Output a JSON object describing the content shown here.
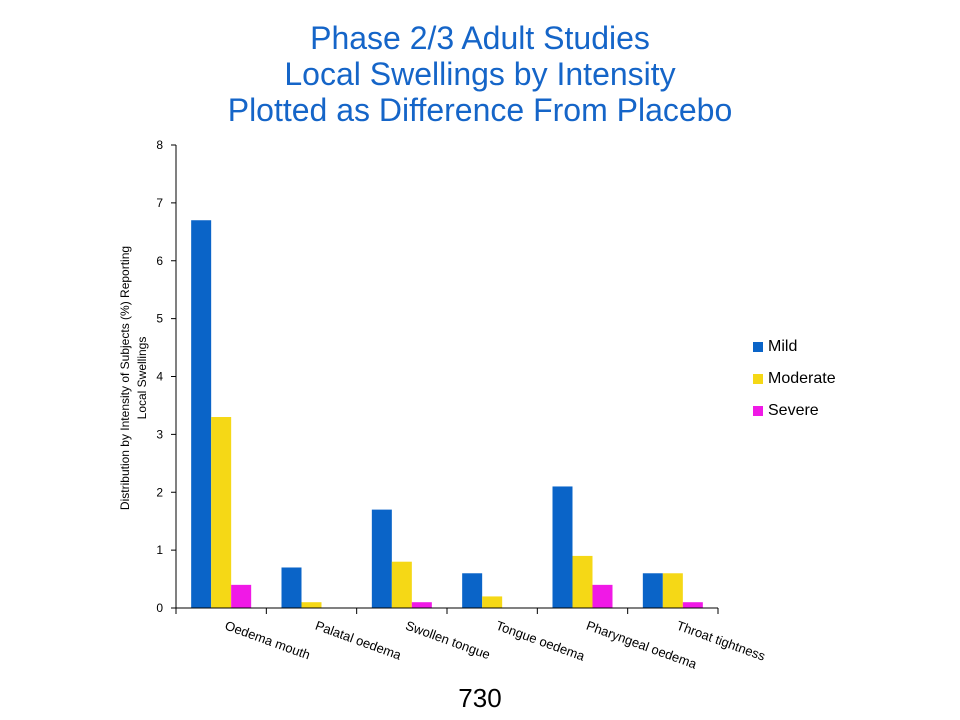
{
  "chart_data": {
    "type": "bar",
    "title": [
      "Phase 2/3 Adult Studies",
      "Local Swellings by Intensity",
      "Plotted as Difference From Placebo"
    ],
    "xlabel": "",
    "ylabel": [
      "Distribution by Intensity  of Subjects (%)  Reporting",
      "Local Swellings"
    ],
    "ylim": [
      0,
      8
    ],
    "yticks": [
      "0",
      "1",
      "2",
      "3",
      "4",
      "5",
      "6",
      "7",
      "8"
    ],
    "categories": [
      "Oedema mouth",
      "Palatal oedema",
      "Swollen tongue",
      "Tongue oedema",
      "Pharyngeal oedema",
      "Throat tightness"
    ],
    "series": [
      {
        "name": "Mild",
        "color": "#0a64c8",
        "values": [
          6.7,
          0.7,
          1.7,
          0.6,
          2.1,
          0.6
        ]
      },
      {
        "name": "Moderate",
        "color": "#f5d816",
        "values": [
          3.3,
          0.1,
          0.8,
          0.2,
          0.9,
          0.6
        ]
      },
      {
        "name": "Severe",
        "color": "#f019e6",
        "values": [
          0.4,
          0,
          0.1,
          0,
          0.4,
          0.1
        ]
      }
    ],
    "legend_position": "right",
    "grid": false
  },
  "page": {
    "number": "730"
  },
  "colors": {
    "title": "#1565c8",
    "axis": "#000000"
  }
}
